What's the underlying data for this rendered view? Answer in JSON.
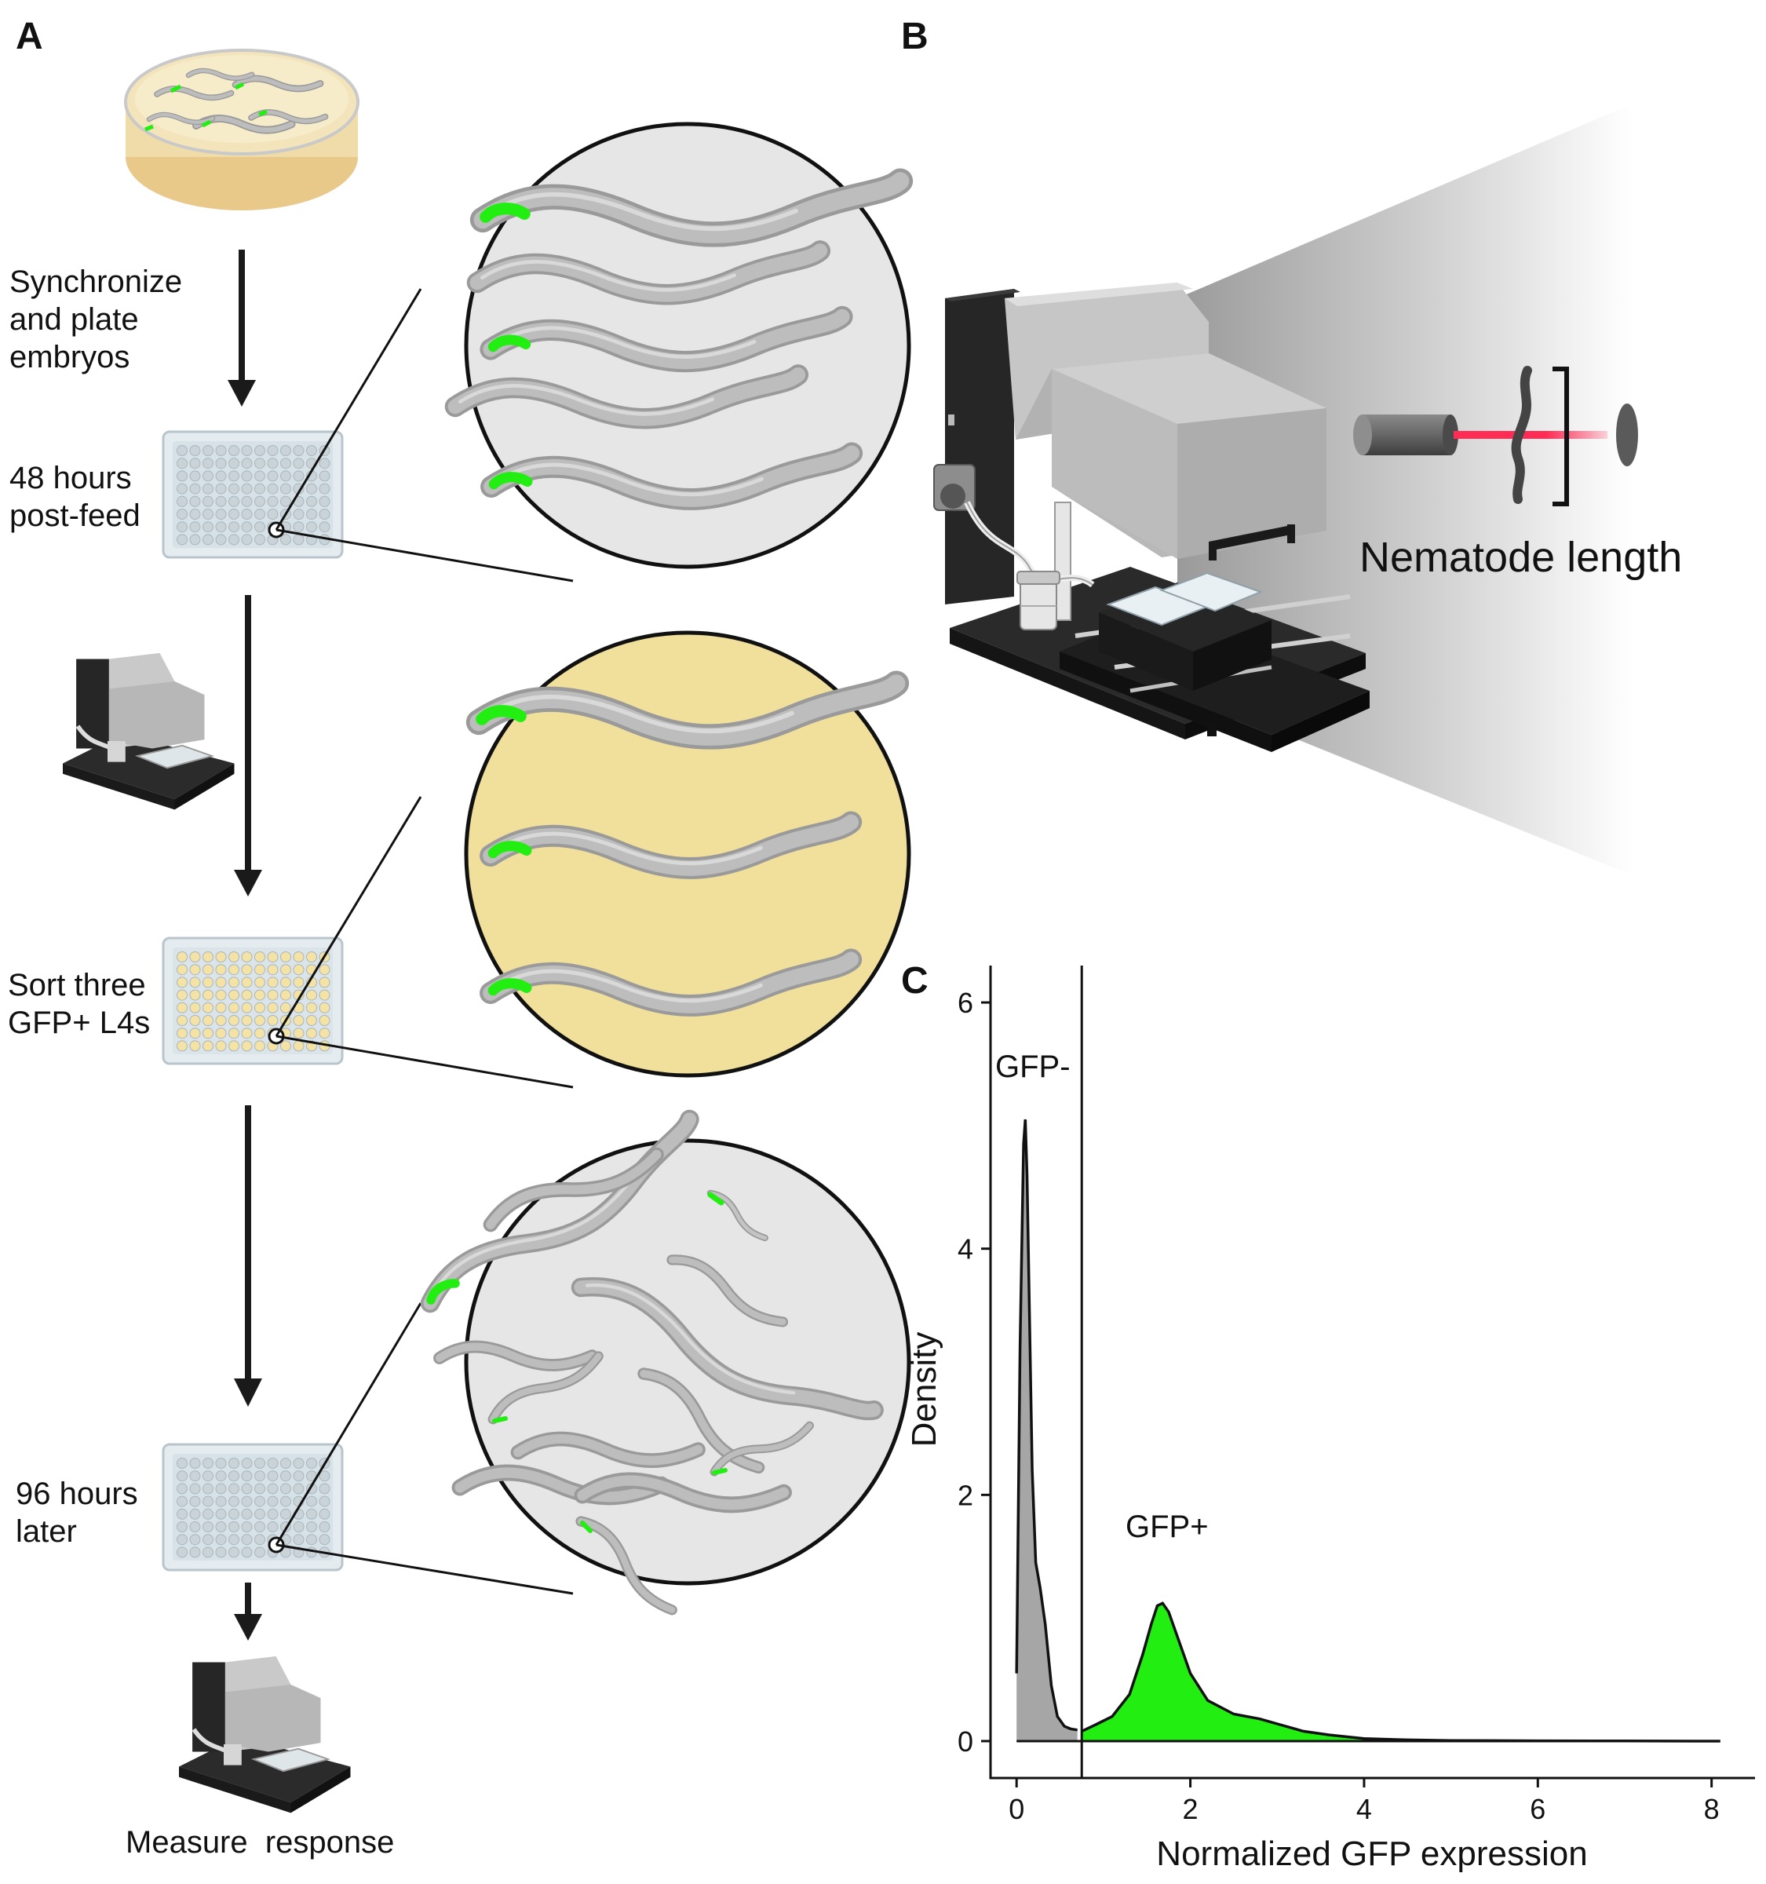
{
  "panels": {
    "a": "A",
    "b": "B",
    "c": "C"
  },
  "workflow": {
    "steps": [
      "Synchronize\nand plate\nembryos",
      "48 hours\npost-feed",
      "Sort three\nGFP+ L4s",
      "96 hours\nlater"
    ],
    "final": "Measure  response"
  },
  "instrument": {
    "measurement_label": "Nematode length"
  },
  "colors": {
    "gfp": "#22ee11",
    "neg_fill": "#a6a6a6",
    "sorted_circle": "#f1df9c",
    "view_circle": "#e6e6e6",
    "dish_agar": "#f2e2b4",
    "laser": "#ff2d55",
    "worm": "#b3b3b3"
  },
  "chart_data": {
    "type": "area",
    "xlabel": "Normalized GFP expression",
    "ylabel": "Density",
    "xlim": [
      -0.3,
      8.5
    ],
    "ylim": [
      -0.3,
      6.3
    ],
    "x_ticks": [
      0,
      2,
      4,
      6,
      8
    ],
    "y_ticks": [
      0,
      2,
      4,
      6
    ],
    "threshold": 0.75,
    "annotations": [
      "GFP-",
      "GFP+"
    ],
    "series": [
      {
        "x": [
          0,
          0.04,
          0.08,
          0.1,
          0.12,
          0.15,
          0.18,
          0.22,
          0.27,
          0.33,
          0.4,
          0.47,
          0.55,
          0.62,
          0.7
        ],
        "y": [
          0.55,
          3.2,
          4.85,
          5.05,
          4.6,
          3.4,
          2.2,
          1.45,
          1.25,
          0.95,
          0.45,
          0.2,
          0.12,
          0.1,
          0.09
        ]
      },
      {
        "x": [
          0.75,
          0.9,
          1.1,
          1.3,
          1.45,
          1.55,
          1.62,
          1.68,
          1.75,
          1.85,
          2.0,
          2.2,
          2.5,
          2.8,
          3.0,
          3.3,
          3.6,
          4.0,
          4.5,
          5.0,
          6.0,
          7.0,
          8.1
        ],
        "y": [
          0.08,
          0.13,
          0.2,
          0.38,
          0.7,
          0.95,
          1.1,
          1.12,
          1.05,
          0.85,
          0.55,
          0.33,
          0.22,
          0.18,
          0.14,
          0.08,
          0.05,
          0.02,
          0.01,
          0.005,
          0.002,
          0.001,
          0.0
        ]
      }
    ]
  }
}
